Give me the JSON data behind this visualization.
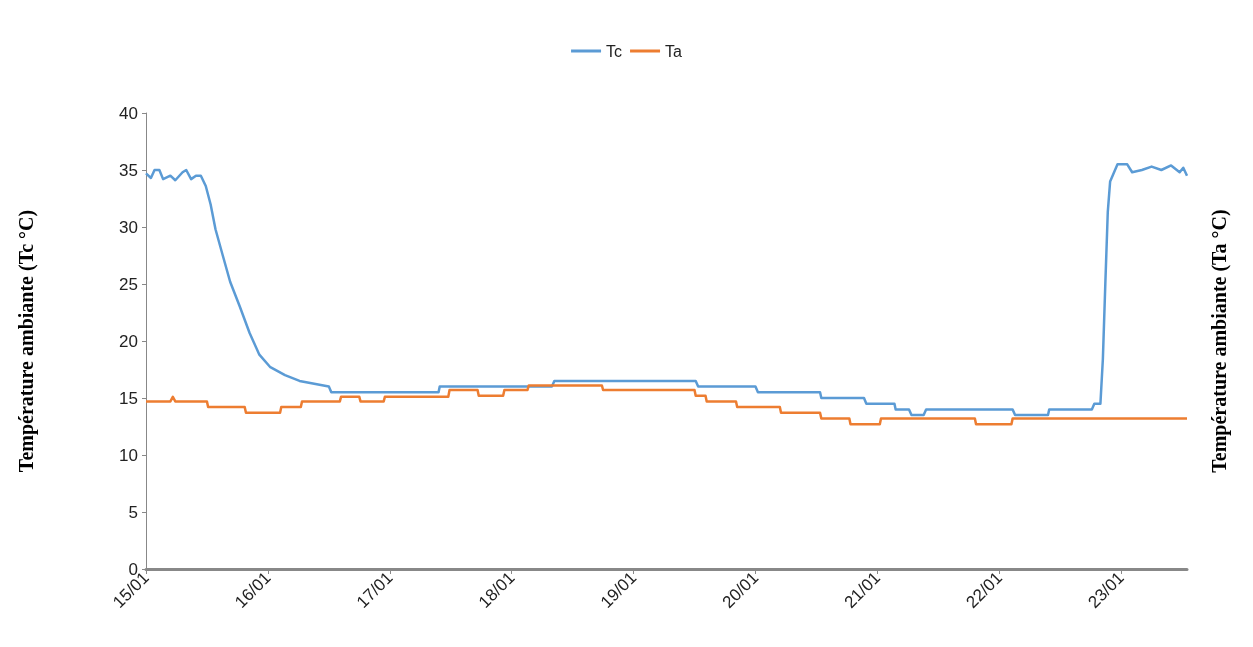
{
  "chart_data": {
    "type": "line",
    "ylabel": "Température ambiante (Tc °C)",
    "y2label": "Température ambiante (Ta °C)",
    "xlim": [
      "--01-15",
      "--01-23T12:58"
    ],
    "xticks": [
      {
        "value": "--01-15",
        "label": "15/01"
      },
      {
        "value": "--01-16",
        "label": "16/01"
      },
      {
        "value": "--01-17",
        "label": "17/01"
      },
      {
        "value": "--01-18",
        "label": "18/01"
      },
      {
        "value": "--01-19",
        "label": "19/01"
      },
      {
        "value": "--01-20",
        "label": "20/01"
      },
      {
        "value": "--01-21",
        "label": "21/01"
      },
      {
        "value": "--01-22",
        "label": "22/01"
      },
      {
        "value": "--01-23",
        "label": "23/01"
      }
    ],
    "ylim": [
      0,
      40
    ],
    "yticks": [
      0,
      5,
      10,
      15,
      20,
      25,
      30,
      35,
      40
    ],
    "grid": false,
    "legend": "top",
    "marker": "none",
    "line_style": "solid",
    "series": [
      {
        "name": "Tc",
        "color": "#5b9bd5",
        "x": [
          "--01-15T00:00",
          "--01-15T00:58",
          "--01-15T01:41",
          "--01-15T02:38",
          "--01-15T03:22",
          "--01-15T04:48",
          "--01-15T05:46",
          "--01-15T07:12",
          "--01-15T07:55",
          "--01-15T08:53",
          "--01-15T09:50",
          "--01-15T10:48",
          "--01-15T11:46",
          "--01-15T12:43",
          "--01-15T13:41",
          "--01-15T15:07",
          "--01-15T16:34",
          "--01-15T18:29",
          "--01-15T20:24",
          "--01-15T22:19",
          "--01-16T00:29",
          "--01-16T03:22",
          "--01-16T06:14",
          "--01-16T12:00",
          "--01-16T12:29",
          "--01-17T09:36",
          "--01-17T09:50",
          "--01-18T07:55",
          "--01-18T08:24",
          "--01-19T12:14",
          "--01-19T12:43",
          "--01-20T00:00",
          "--01-20T00:29",
          "--01-20T12:43",
          "--01-20T12:58",
          "--01-20T21:22",
          "--01-20T21:50",
          "--01-21T03:22",
          "--01-21T03:36",
          "--01-21T06:14",
          "--01-21T06:43",
          "--01-21T09:07",
          "--01-21T09:36",
          "--01-22T02:38",
          "--01-22T03:07",
          "--01-22T09:36",
          "--01-22T09:50",
          "--01-22T18:14",
          "--01-22T18:43",
          "--01-22T19:55",
          "--01-22T20:24",
          "--01-22T20:53",
          "--01-22T21:22",
          "--01-22T21:50",
          "--01-22T23:17",
          "--01-23T01:12",
          "--01-23T02:10",
          "--01-23T04:05",
          "--01-23T06:00",
          "--01-23T07:55",
          "--01-23T09:50",
          "--01-23T11:31",
          "--01-23T12:14",
          "--01-23T12:58"
        ],
        "values": [
          34.7,
          34.3,
          35,
          35,
          34.2,
          34.5,
          34.1,
          34.8,
          35,
          34.2,
          34.5,
          34.5,
          33.6,
          32,
          29.8,
          27.5,
          25.2,
          23,
          20.7,
          18.8,
          17.7,
          17,
          16.5,
          16,
          15.5,
          15.5,
          16,
          16,
          16.5,
          16.5,
          16,
          16,
          15.5,
          15.5,
          15,
          15,
          14.5,
          14.5,
          14,
          14,
          13.5,
          13.5,
          14,
          14,
          13.5,
          13.5,
          14,
          14,
          14.5,
          14.5,
          18.4,
          25,
          31.3,
          34,
          35.5,
          35.5,
          34.8,
          35,
          35.3,
          35,
          35.4,
          34.8,
          35.2,
          34.5
        ]
      },
      {
        "name": "Ta",
        "color": "#ed7d31",
        "x": [
          "--01-15T00:00",
          "--01-15T04:48",
          "--01-15T05:17",
          "--01-15T05:46",
          "--01-15T12:00",
          "--01-15T12:14",
          "--01-15T19:26",
          "--01-15T19:41",
          "--01-16T02:24",
          "--01-16T02:38",
          "--01-16T06:29",
          "--01-16T06:43",
          "--01-16T14:10",
          "--01-16T14:24",
          "--01-16T18:00",
          "--01-16T18:14",
          "--01-16T22:48",
          "--01-16T23:02",
          "--01-17T11:31",
          "--01-17T11:46",
          "--01-17T17:17",
          "--01-17T17:31",
          "--01-17T22:19",
          "--01-17T22:34",
          "--01-18T03:07",
          "--01-18T03:22",
          "--01-18T17:46",
          "--01-18T18:00",
          "--01-19T12:00",
          "--01-19T12:14",
          "--01-19T14:10",
          "--01-19T14:24",
          "--01-19T20:10",
          "--01-19T20:24",
          "--01-20T04:48",
          "--01-20T05:02",
          "--01-20T12:43",
          "--01-20T12:58",
          "--01-20T18:29",
          "--01-20T18:43",
          "--01-21T00:29",
          "--01-21T00:43",
          "--01-21T19:12",
          "--01-21T19:26",
          "--01-22T02:24",
          "--01-22T02:38",
          "--01-23T12:58"
        ],
        "values": [
          14.7,
          14.7,
          15.1,
          14.7,
          14.7,
          14.2,
          14.2,
          13.7,
          13.7,
          14.2,
          14.2,
          14.7,
          14.7,
          15.1,
          15.1,
          14.7,
          14.7,
          15.1,
          15.1,
          15.7,
          15.7,
          15.2,
          15.2,
          15.7,
          15.7,
          16.1,
          16.1,
          15.7,
          15.7,
          15.2,
          15.2,
          14.7,
          14.7,
          14.2,
          14.2,
          13.7,
          13.7,
          13.2,
          13.2,
          12.7,
          12.7,
          13.2,
          13.2,
          12.7,
          12.7,
          13.2,
          13.2
        ]
      }
    ]
  }
}
